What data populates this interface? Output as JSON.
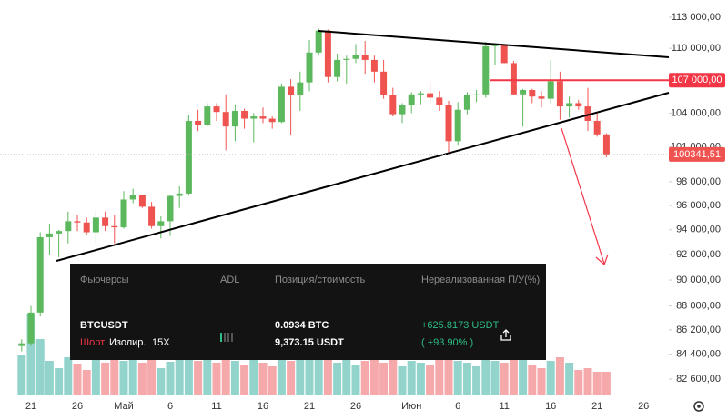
{
  "chart_data": {
    "type": "candlestick",
    "log_scale": true,
    "grid": false,
    "up_color": "#5cb85c",
    "down_color": "#ef5350",
    "up_volume_color": "#92d3cc",
    "down_volume_color": "#f5a9aa",
    "categories": [
      null,
      "21",
      null,
      null,
      null,
      null,
      "26",
      null,
      null,
      null,
      null,
      "Май",
      null,
      null,
      null,
      null,
      "6",
      null,
      null,
      null,
      null,
      "11",
      null,
      null,
      null,
      null,
      "16",
      null,
      null,
      null,
      null,
      "21",
      null,
      null,
      null,
      null,
      "26",
      null,
      null,
      null,
      null,
      null,
      "Июн",
      null,
      null,
      null,
      null,
      "6",
      null,
      null,
      null,
      null,
      "11",
      null,
      null,
      null,
      null,
      "16",
      null,
      null,
      null,
      null,
      "21",
      null,
      null,
      null,
      null,
      "26"
    ],
    "open": [
      85000,
      85200,
      87500,
      93400,
      93700,
      93900,
      94700,
      94600,
      93800,
      95000,
      94300,
      94200,
      96500,
      96900,
      95900,
      94300,
      94700,
      96800,
      97000,
      103300,
      102900,
      104600,
      104100,
      102800,
      104200,
      103500,
      103700,
      103500,
      103200,
      106400,
      105600,
      106800,
      109600,
      111700,
      107300,
      108900,
      109000,
      109400,
      108900,
      107800,
      105600,
      103900,
      104700,
      105700,
      105800,
      105400,
      104700,
      101500,
      104300,
      105600,
      105700,
      110200,
      110300,
      108600,
      105700,
      106100,
      105500,
      105300,
      106900,
      104600,
      104900,
      104600,
      103300,
      102100,
      null,
      null,
      null,
      null
    ],
    "high": [
      85500,
      88000,
      93800,
      94500,
      94000,
      95500,
      95200,
      95000,
      95600,
      95500,
      95200,
      97200,
      97400,
      96900,
      96300,
      95100,
      96900,
      97600,
      103800,
      104300,
      104900,
      104900,
      105700,
      104800,
      104400,
      104000,
      104500,
      103700,
      106700,
      107100,
      107800,
      110800,
      111900,
      111800,
      109500,
      109300,
      110400,
      110700,
      109300,
      108900,
      106300,
      104900,
      105900,
      106000,
      106800,
      106000,
      105100,
      105000,
      105900,
      106100,
      110600,
      110400,
      110400,
      108800,
      106200,
      106200,
      106000,
      108900,
      107800,
      105500,
      105200,
      106300,
      104000,
      102200,
      null,
      null,
      null,
      null
    ],
    "low": [
      84600,
      85000,
      87200,
      92000,
      91800,
      92900,
      93900,
      93600,
      92900,
      93900,
      92900,
      94100,
      96200,
      95800,
      94100,
      93300,
      93500,
      95800,
      96900,
      102400,
      102800,
      103300,
      100700,
      101500,
      102600,
      101400,
      103100,
      102600,
      103100,
      102000,
      104200,
      106000,
      109300,
      106800,
      106900,
      106700,
      108600,
      107600,
      106800,
      105300,
      103700,
      103100,
      104000,
      104800,
      104900,
      104200,
      100400,
      101100,
      103900,
      105000,
      105400,
      108400,
      108600,
      105700,
      102800,
      104900,
      104500,
      104900,
      103400,
      103600,
      104300,
      102400,
      101900,
      100100,
      null,
      null,
      null,
      null
    ],
    "close": [
      85200,
      87500,
      93400,
      93700,
      93900,
      94700,
      94600,
      93800,
      95000,
      94300,
      94200,
      96500,
      96900,
      95900,
      94300,
      94700,
      96800,
      97000,
      103300,
      102900,
      104600,
      104100,
      102800,
      104200,
      103500,
      103700,
      103500,
      103200,
      106400,
      105600,
      106800,
      109600,
      111700,
      107300,
      108900,
      109000,
      109400,
      108900,
      107800,
      105600,
      103900,
      104700,
      105700,
      105800,
      105400,
      104700,
      101500,
      104300,
      105600,
      105700,
      110200,
      110300,
      108600,
      105700,
      106100,
      105500,
      105300,
      106900,
      104600,
      104900,
      104600,
      103300,
      102100,
      100341.51,
      null,
      null,
      null,
      null
    ],
    "volume": [
      45,
      90,
      62,
      38,
      30,
      42,
      35,
      28,
      40,
      36,
      44,
      38,
      40,
      36,
      42,
      30,
      37,
      40,
      46,
      38,
      42,
      36,
      44,
      38,
      34,
      40,
      36,
      32,
      42,
      38,
      44,
      40,
      46,
      42,
      36,
      40,
      34,
      38,
      42,
      36,
      40,
      32,
      38,
      36,
      34,
      40,
      44,
      38,
      36,
      32,
      40,
      38,
      36,
      44,
      40,
      34,
      30,
      38,
      42,
      36,
      28,
      30,
      26,
      26,
      null,
      null,
      null,
      null
    ],
    "ylim": [
      81440,
      114700
    ],
    "yticks": [
      {
        "value": 113000,
        "label": "113 000,00"
      },
      {
        "value": 110000,
        "label": "110 000,00"
      },
      {
        "value": 104000,
        "label": "104 000,00"
      },
      {
        "value": 101000,
        "label": "101 000,00"
      },
      {
        "value": 98000,
        "label": "98 000,00"
      },
      {
        "value": 96000,
        "label": "96 000,00"
      },
      {
        "value": 94000,
        "label": "94 000,00"
      },
      {
        "value": 92000,
        "label": "92 000,00"
      },
      {
        "value": 90000,
        "label": "90 000,00"
      },
      {
        "value": 88000,
        "label": "88 000,00"
      },
      {
        "value": 86200,
        "label": "86 200,00"
      },
      {
        "value": 84400,
        "label": "84 400,00"
      },
      {
        "value": 82600,
        "label": "82 600,00"
      }
    ],
    "price_lines": [
      {
        "value": 107000,
        "label": "107 000,00",
        "color": "#f23645"
      },
      {
        "value": 100341.51,
        "label": "100341,51",
        "color": "#ef5350"
      }
    ]
  },
  "position_panel": {
    "headers": [
      "Фьючерсы",
      "ADL",
      "Позиция/стоимость",
      "Нереализованная П/У(%)"
    ],
    "symbol": "BTCUSDT",
    "side": "Шорт",
    "margin_mode": "Изолир.",
    "leverage": "15X",
    "size": "0.0934 BTC",
    "value": "9,373.15 USDT",
    "pnl": "+625.8173 USDT",
    "pnl_percent": "( +93.90% )"
  }
}
